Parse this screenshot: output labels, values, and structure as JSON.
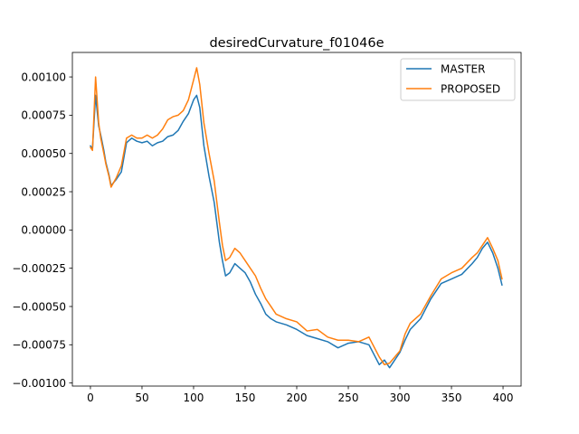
{
  "chart_data": {
    "type": "line",
    "title": "desiredCurvature_f01046e",
    "xlabel": "",
    "ylabel": "",
    "xlim": [
      -17.5,
      417.5
    ],
    "ylim": [
      -0.00102,
      0.00116
    ],
    "xticks": [
      0,
      50,
      100,
      150,
      200,
      250,
      300,
      350,
      400
    ],
    "xtick_labels": [
      "0",
      "50",
      "100",
      "150",
      "200",
      "250",
      "300",
      "350",
      "400"
    ],
    "yticks": [
      -0.001,
      -0.00075,
      -0.0005,
      -0.00025,
      0,
      0.00025,
      0.0005,
      0.00075,
      0.001
    ],
    "ytick_labels": [
      "−0.00100",
      "−0.00075",
      "−0.00050",
      "−0.00025",
      "0.00000",
      "0.00025",
      "0.00050",
      "0.00075",
      "0.00100"
    ],
    "grid": false,
    "legend_position": "top-right",
    "colors": {
      "MASTER": "#1f77b4",
      "PROPOSED": "#ff7f0e"
    },
    "series": [
      {
        "name": "MASTER",
        "x": [
          0,
          2,
          5,
          8,
          10,
          13,
          15,
          18,
          20,
          25,
          30,
          35,
          40,
          45,
          50,
          55,
          60,
          65,
          70,
          75,
          80,
          85,
          90,
          95,
          100,
          103,
          106,
          110,
          115,
          120,
          125,
          128,
          131,
          135,
          140,
          145,
          150,
          155,
          160,
          165,
          170,
          175,
          180,
          190,
          200,
          210,
          220,
          230,
          240,
          250,
          260,
          270,
          280,
          285,
          290,
          295,
          300,
          305,
          310,
          320,
          330,
          340,
          350,
          360,
          370,
          375,
          380,
          385,
          390,
          395,
          399
        ],
        "y": [
          0.00055,
          0.00053,
          0.00088,
          0.00068,
          0.00062,
          0.00052,
          0.00044,
          0.00036,
          0.00029,
          0.00033,
          0.00038,
          0.00057,
          0.0006,
          0.00058,
          0.00057,
          0.00058,
          0.00055,
          0.00057,
          0.00058,
          0.00061,
          0.00062,
          0.00065,
          0.00071,
          0.00076,
          0.00085,
          0.00088,
          0.0008,
          0.00055,
          0.00035,
          0.00018,
          -8e-05,
          -0.0002,
          -0.0003,
          -0.00028,
          -0.00022,
          -0.00025,
          -0.00028,
          -0.00034,
          -0.00042,
          -0.00048,
          -0.00055,
          -0.00058,
          -0.0006,
          -0.00062,
          -0.00065,
          -0.00069,
          -0.00071,
          -0.00073,
          -0.00077,
          -0.00074,
          -0.00073,
          -0.00075,
          -0.00088,
          -0.00085,
          -0.0009,
          -0.00085,
          -0.0008,
          -0.00072,
          -0.00065,
          -0.00058,
          -0.00045,
          -0.00035,
          -0.00032,
          -0.00029,
          -0.00022,
          -0.00018,
          -0.00012,
          -8e-05,
          -0.00015,
          -0.00025,
          -0.00036
        ]
      },
      {
        "name": "PROPOSED",
        "x": [
          0,
          2,
          5,
          8,
          10,
          13,
          15,
          18,
          20,
          25,
          30,
          35,
          40,
          45,
          50,
          55,
          60,
          65,
          70,
          75,
          80,
          85,
          90,
          95,
          100,
          103,
          106,
          110,
          115,
          120,
          125,
          128,
          131,
          135,
          140,
          145,
          150,
          155,
          160,
          165,
          170,
          175,
          180,
          190,
          200,
          210,
          220,
          230,
          240,
          250,
          260,
          270,
          280,
          285,
          290,
          295,
          300,
          305,
          310,
          320,
          330,
          340,
          350,
          360,
          370,
          375,
          380,
          385,
          390,
          395,
          399
        ],
        "y": [
          0.00054,
          0.00052,
          0.001,
          0.0007,
          0.0006,
          0.0005,
          0.00043,
          0.00035,
          0.00028,
          0.00034,
          0.00042,
          0.0006,
          0.00062,
          0.0006,
          0.0006,
          0.00062,
          0.0006,
          0.00062,
          0.00066,
          0.00072,
          0.00074,
          0.00075,
          0.00078,
          0.00085,
          0.00098,
          0.00106,
          0.00095,
          0.0007,
          0.0005,
          0.00032,
          5e-05,
          -0.0001,
          -0.0002,
          -0.00018,
          -0.00012,
          -0.00015,
          -0.0002,
          -0.00025,
          -0.0003,
          -0.00038,
          -0.00045,
          -0.0005,
          -0.00055,
          -0.00058,
          -0.0006,
          -0.00066,
          -0.00065,
          -0.0007,
          -0.00072,
          -0.00072,
          -0.00073,
          -0.0007,
          -0.00083,
          -0.00088,
          -0.00087,
          -0.00083,
          -0.00079,
          -0.00068,
          -0.00061,
          -0.00055,
          -0.00043,
          -0.00032,
          -0.00028,
          -0.00025,
          -0.00018,
          -0.00015,
          -0.0001,
          -5e-05,
          -0.00012,
          -0.0002,
          -0.00032
        ]
      }
    ]
  }
}
